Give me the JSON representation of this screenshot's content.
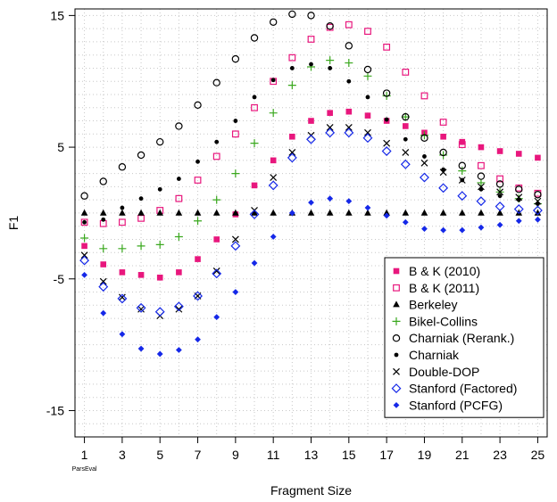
{
  "chart_data": {
    "type": "scatter",
    "xlabel": "Fragment Size",
    "ylabel": "F1",
    "x_sublabel": "ParsEval",
    "xlim": [
      0.5,
      25.5
    ],
    "ylim": [
      -17,
      15.5
    ],
    "x_ticks": [
      1,
      3,
      5,
      7,
      9,
      11,
      13,
      15,
      17,
      19,
      21,
      23,
      25
    ],
    "y_ticks": [
      -15,
      -5,
      5,
      15
    ],
    "grid": true,
    "legend_position": "bottom-right",
    "x": [
      1,
      2,
      3,
      4,
      5,
      6,
      7,
      8,
      9,
      10,
      11,
      12,
      13,
      14,
      15,
      16,
      17,
      18,
      19,
      20,
      21,
      22,
      23,
      24,
      25
    ],
    "series": [
      {
        "name": "B & K (2010)",
        "marker": "square-filled",
        "color": "#e8177d",
        "values": [
          -2.5,
          -3.9,
          -4.5,
          -4.7,
          -4.9,
          -4.5,
          -3.5,
          -2.0,
          -0.1,
          2.1,
          4.0,
          5.8,
          7.0,
          7.6,
          7.7,
          7.4,
          7.0,
          6.6,
          6.1,
          5.8,
          5.4,
          5.0,
          4.7,
          4.5,
          4.2
        ]
      },
      {
        "name": "B & K (2011)",
        "marker": "square-open",
        "color": "#e8177d",
        "values": [
          -0.7,
          -0.8,
          -0.7,
          -0.4,
          0.2,
          1.1,
          2.5,
          4.3,
          6.0,
          8.0,
          10.0,
          11.8,
          13.2,
          14.1,
          14.3,
          13.8,
          12.6,
          10.7,
          8.9,
          6.9,
          5.2,
          3.6,
          2.6,
          1.9,
          1.5
        ]
      },
      {
        "name": "Berkeley",
        "marker": "triangle",
        "color": "#000000",
        "values": [
          0,
          0,
          0,
          0,
          0,
          0,
          0,
          0,
          0,
          0,
          0,
          0,
          0,
          0,
          0,
          0,
          0,
          0,
          0,
          0,
          0,
          0,
          0,
          0,
          0
        ]
      },
      {
        "name": "Bikel-Collins",
        "marker": "plus",
        "color": "#3aa81e",
        "values": [
          -1.9,
          -2.7,
          -2.7,
          -2.5,
          -2.4,
          -1.8,
          -0.6,
          1.0,
          3.0,
          5.3,
          7.6,
          9.7,
          11.1,
          11.6,
          11.4,
          10.4,
          8.9,
          7.3,
          5.9,
          4.4,
          3.2,
          2.3,
          1.6,
          1.1,
          0.7
        ]
      },
      {
        "name": "Charniak (Rerank.)",
        "marker": "circle-open",
        "color": "#000000",
        "values": [
          1.3,
          2.4,
          3.5,
          4.4,
          5.4,
          6.6,
          8.2,
          9.9,
          11.7,
          13.3,
          14.5,
          15.1,
          15.0,
          14.2,
          12.7,
          10.9,
          9.1,
          7.3,
          5.7,
          4.6,
          3.6,
          2.8,
          2.2,
          1.8,
          1.4
        ]
      },
      {
        "name": "Charniak",
        "marker": "circle-filled",
        "color": "#000000",
        "values": [
          -0.7,
          -0.5,
          0.4,
          1.1,
          1.8,
          2.6,
          3.9,
          5.4,
          7.0,
          8.8,
          10.1,
          11.0,
          11.3,
          11.0,
          10.0,
          8.8,
          7.1,
          5.6,
          4.3,
          3.3,
          2.5,
          1.8,
          1.3,
          1.0,
          0.7
        ]
      },
      {
        "name": "Double-DOP",
        "marker": "cross",
        "color": "#000000",
        "values": [
          -3.2,
          -5.2,
          -6.4,
          -7.3,
          -7.8,
          -7.3,
          -6.3,
          -4.4,
          -2.0,
          0.2,
          2.7,
          4.6,
          5.9,
          6.5,
          6.5,
          6.1,
          5.3,
          4.6,
          3.8,
          3.1,
          2.5,
          2.0,
          1.6,
          1.2,
          0.9
        ]
      },
      {
        "name": "Stanford (Factored)",
        "marker": "diamond-open",
        "color": "#1528e8",
        "values": [
          -3.6,
          -5.6,
          -6.5,
          -7.2,
          -7.5,
          -7.1,
          -6.3,
          -4.6,
          -2.5,
          -0.1,
          2.1,
          4.2,
          5.6,
          6.1,
          6.1,
          5.7,
          4.7,
          3.7,
          2.7,
          1.9,
          1.3,
          0.9,
          0.5,
          0.3,
          0.2
        ]
      },
      {
        "name": "Stanford (PCFG)",
        "marker": "diamond-filled",
        "color": "#1528e8",
        "values": [
          -4.7,
          -7.6,
          -9.2,
          -10.3,
          -10.7,
          -10.4,
          -9.6,
          -7.9,
          -6.0,
          -3.8,
          -1.8,
          0.0,
          0.8,
          1.1,
          0.9,
          0.4,
          -0.2,
          -0.7,
          -1.2,
          -1.3,
          -1.3,
          -1.1,
          -0.9,
          -0.6,
          -0.5
        ]
      }
    ]
  }
}
